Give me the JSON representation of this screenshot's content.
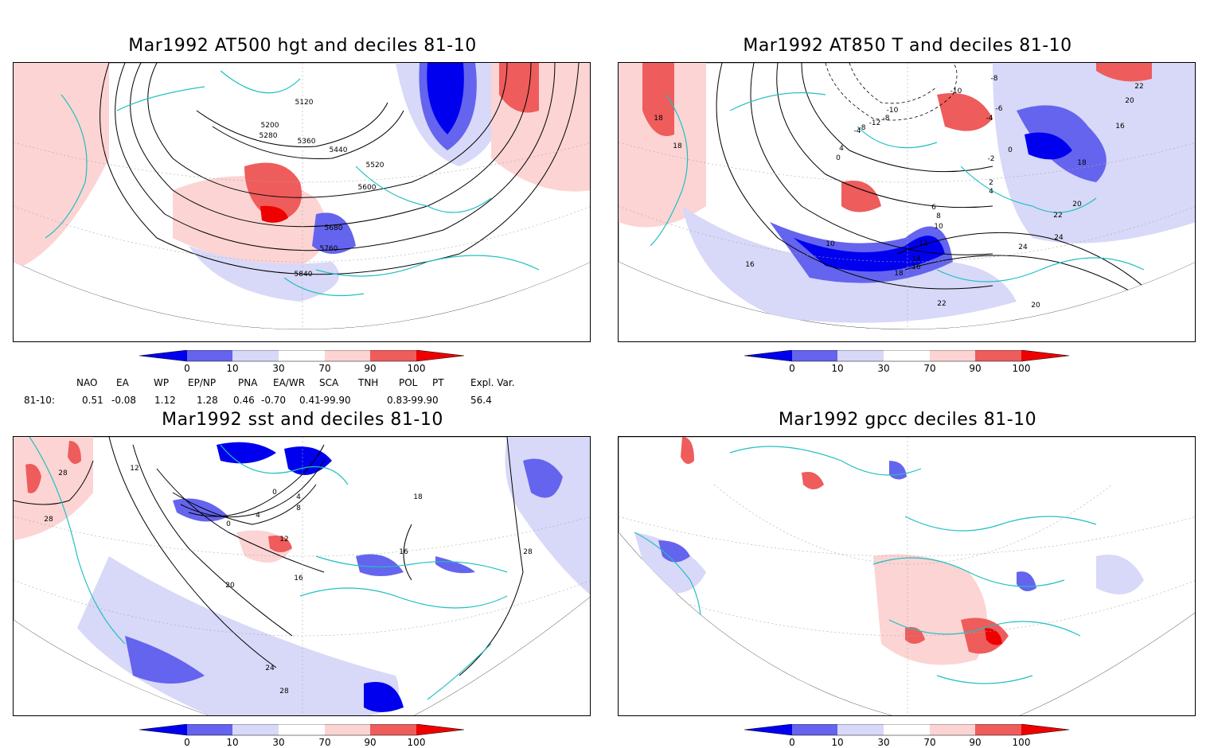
{
  "panels": [
    {
      "title": "Mar1992 AT500 hgt and deciles 81-10",
      "contour_labels": [
        "5120",
        "5200",
        "5280",
        "5360",
        "5440",
        "5520",
        "5600",
        "5680",
        "5760",
        "5840"
      ]
    },
    {
      "title": "Mar1992 AT850 T and deciles 81-10",
      "contour_labels": [
        "18",
        "18",
        "16",
        "10",
        "6",
        "8",
        "10",
        "12",
        "14",
        "16",
        "18",
        "22",
        "24",
        "24",
        "22",
        "20",
        "20",
        "18",
        "22",
        "20",
        "16",
        "0",
        "2",
        "4",
        "-2",
        "-4",
        "-6",
        "-8",
        "-10",
        "4",
        "0",
        "-4",
        "-8",
        "-12",
        "-10",
        "-8"
      ]
    },
    {
      "title": "Mar1992 sst and deciles 81-10",
      "contour_labels": [
        "28",
        "28",
        "12",
        "0",
        "4",
        "8",
        "0",
        "4",
        "12",
        "16",
        "20",
        "24",
        "28",
        "16",
        "18",
        "28"
      ]
    },
    {
      "title": "Mar1992 gpcc deciles 81-10",
      "contour_labels": []
    }
  ],
  "colorbar": {
    "labels": [
      "0",
      "10",
      "30",
      "70",
      "90",
      "100"
    ],
    "colors": [
      "#0000ee",
      "#6464ee",
      "#d8d8f8",
      "#ffffff",
      "#fcd4d4",
      "#ee5c5c",
      "#ee0000"
    ]
  },
  "indices": {
    "headers": [
      "NAO",
      "EA",
      "WP",
      "EP/NP",
      "PNA",
      "EA/WR",
      "SCA",
      "TNH",
      "POL",
      "PT",
      "Expl. Var."
    ],
    "row_label": "81-10:",
    "values": [
      "0.51",
      "-0.08",
      "1.12",
      "1.28",
      "0.46",
      "-0.70",
      "0.41",
      "-99.90",
      "0.83",
      "-99.90",
      "56.4"
    ]
  },
  "map_colors": {
    "coast": "#20c0c0",
    "contour": "#000000",
    "graticule": "#aaaaaa"
  }
}
